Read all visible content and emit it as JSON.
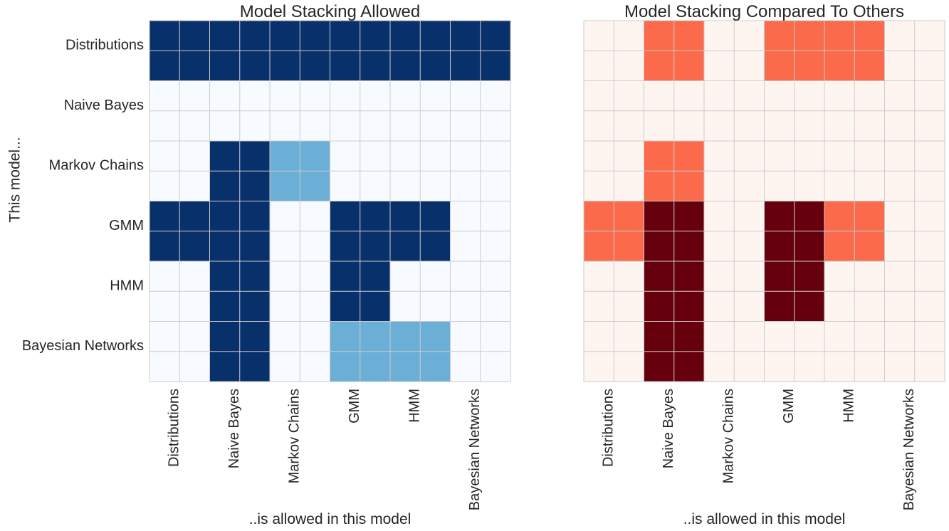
{
  "chart_data": [
    {
      "type": "heatmap",
      "title": "Model Stacking Allowed",
      "xlabel": "..is allowed in this model",
      "ylabel": "This model...",
      "categories_x": [
        "Distributions",
        "Naive Bayes",
        "Markov Chains",
        "GMM",
        "HMM",
        "Bayesian Networks"
      ],
      "categories_y": [
        "Distributions",
        "Naive Bayes",
        "Markov Chains",
        "GMM",
        "HMM",
        "Bayesian Networks"
      ],
      "colormap": "Blues",
      "value_range": [
        0,
        1
      ],
      "values": [
        [
          1,
          1,
          1,
          1,
          1,
          1
        ],
        [
          0,
          0,
          0,
          0,
          0,
          0
        ],
        [
          0,
          1,
          0.5,
          0,
          0,
          0
        ],
        [
          1,
          1,
          0,
          1,
          1,
          0
        ],
        [
          0,
          1,
          0,
          1,
          0,
          0
        ],
        [
          0,
          1,
          0,
          0.5,
          0.5,
          0
        ]
      ],
      "colors": {
        "0": "#f7fbff",
        "0.5": "#6baed6",
        "1": "#08306b"
      },
      "grid": true
    },
    {
      "type": "heatmap",
      "title": "Model Stacking Compared To Others",
      "xlabel": "..is allowed in this model",
      "ylabel": "",
      "categories_x": [
        "Distributions",
        "Naive Bayes",
        "Markov Chains",
        "GMM",
        "HMM",
        "Bayesian Networks"
      ],
      "categories_y": [
        "Distributions",
        "Naive Bayes",
        "Markov Chains",
        "GMM",
        "HMM",
        "Bayesian Networks"
      ],
      "colormap": "Reds",
      "value_range": [
        0,
        1
      ],
      "values": [
        [
          0,
          0.5,
          0,
          0.5,
          0.5,
          0
        ],
        [
          0,
          0,
          0,
          0,
          0,
          0
        ],
        [
          0,
          0.5,
          0,
          0,
          0,
          0
        ],
        [
          0.5,
          1,
          0,
          1,
          0.5,
          0
        ],
        [
          0,
          1,
          0,
          1,
          0,
          0
        ],
        [
          0,
          1,
          0,
          0,
          0,
          0
        ]
      ],
      "colors": {
        "0": "#fff5f0",
        "0.5": "#fb6a4a",
        "1": "#67000d"
      },
      "grid": true
    }
  ]
}
